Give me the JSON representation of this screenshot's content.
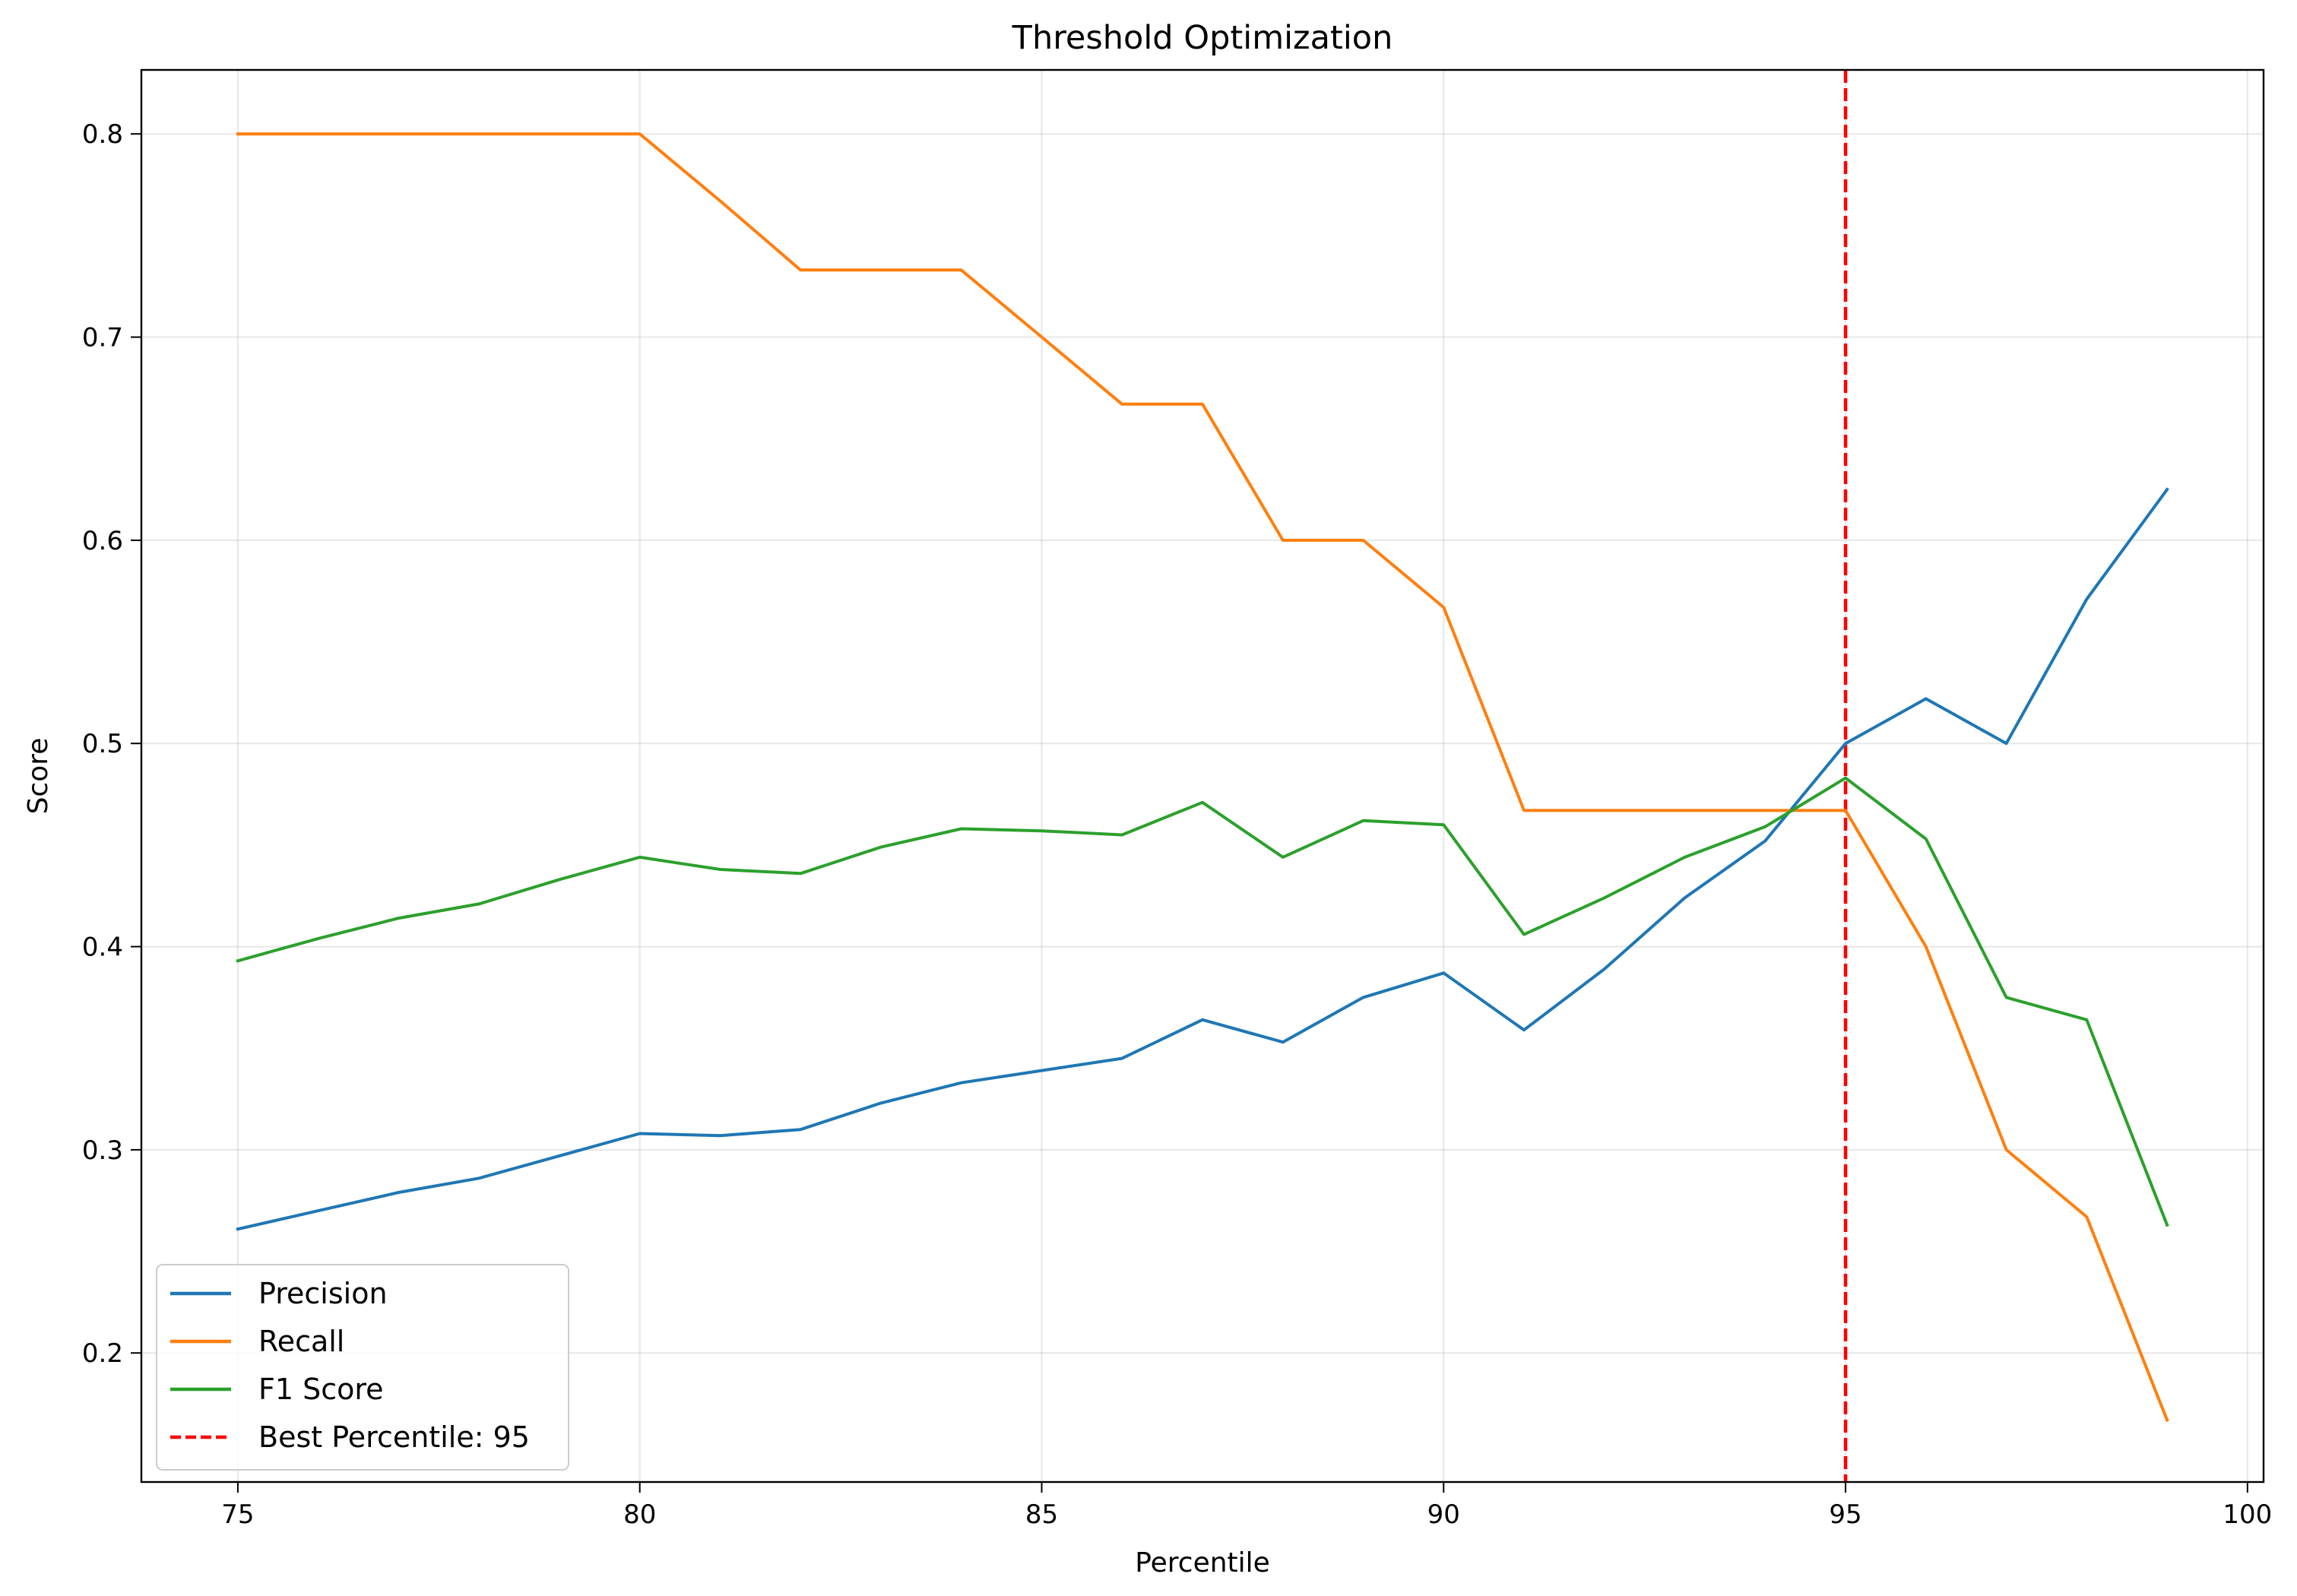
{
  "chart_data": {
    "type": "line",
    "title": "Threshold Optimization",
    "xlabel": "Percentile",
    "ylabel": "Score",
    "xlim": [
      73.8,
      100.2
    ],
    "ylim": [
      0.1365,
      0.8315
    ],
    "xticks": [
      75,
      80,
      85,
      90,
      95,
      100
    ],
    "yticks": [
      0.2,
      0.3,
      0.4,
      0.5,
      0.6,
      0.7,
      0.8
    ],
    "grid": true,
    "legend_position": "lower-left",
    "x": [
      75,
      76,
      77,
      78,
      79,
      80,
      81,
      82,
      83,
      84,
      85,
      86,
      87,
      88,
      89,
      90,
      91,
      92,
      93,
      94,
      95,
      96,
      97,
      98,
      99
    ],
    "series": [
      {
        "name": "Precision",
        "color": "#1f77b4",
        "style": "solid",
        "values": [
          0.261,
          0.27,
          0.279,
          0.286,
          0.297,
          0.308,
          0.307,
          0.31,
          0.323,
          0.333,
          0.339,
          0.345,
          0.364,
          0.353,
          0.375,
          0.387,
          0.359,
          0.389,
          0.424,
          0.452,
          0.5,
          0.522,
          0.5,
          0.571,
          0.625
        ]
      },
      {
        "name": "Recall",
        "color": "#ff7f0e",
        "style": "solid",
        "values": [
          0.8,
          0.8,
          0.8,
          0.8,
          0.8,
          0.8,
          0.767,
          0.733,
          0.733,
          0.733,
          0.7,
          0.667,
          0.667,
          0.6,
          0.6,
          0.567,
          0.467,
          0.467,
          0.467,
          0.467,
          0.467,
          0.4,
          0.3,
          0.267,
          0.167
        ]
      },
      {
        "name": "F1 Score",
        "color": "#2ca02c",
        "style": "solid",
        "values": [
          0.393,
          0.404,
          0.414,
          0.421,
          0.433,
          0.444,
          0.438,
          0.436,
          0.449,
          0.458,
          0.457,
          0.455,
          0.471,
          0.444,
          0.462,
          0.46,
          0.406,
          0.424,
          0.444,
          0.459,
          0.483,
          0.453,
          0.375,
          0.364,
          0.263
        ]
      }
    ],
    "vline": {
      "x": 95,
      "label": "Best Percentile: 95",
      "color": "#ff0000",
      "style": "dashed"
    }
  }
}
